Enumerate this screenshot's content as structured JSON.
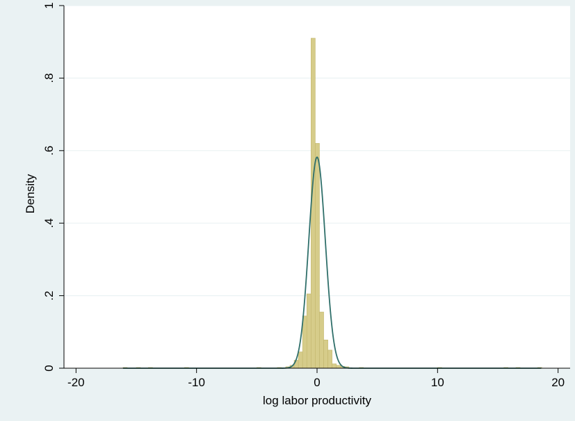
{
  "colors": {
    "background": "#eaf2f3",
    "plot_background": "#ffffff",
    "grid": "#eaf2f3",
    "bar_fill": "#d6cc8a",
    "bar_edge": "#c2b76d",
    "curve": "#2f6f6a",
    "axis": "#000000"
  },
  "chart_data": {
    "type": "bar",
    "title": "",
    "xlabel": "log labor productivity",
    "ylabel": "Density",
    "xlim": [
      -21,
      21
    ],
    "ylim": [
      0,
      1
    ],
    "grid": true,
    "legend": "none",
    "x_ticks": [
      {
        "value": -20,
        "label": "-20"
      },
      {
        "value": -10,
        "label": "-10"
      },
      {
        "value": 0,
        "label": "0"
      },
      {
        "value": 10,
        "label": "10"
      },
      {
        "value": 20,
        "label": "20"
      }
    ],
    "y_ticks": [
      {
        "value": 0,
        "label": "0"
      },
      {
        "value": 0.2,
        "label": ".2"
      },
      {
        "value": 0.4,
        "label": ".4"
      },
      {
        "value": 0.6,
        "label": ".6"
      },
      {
        "value": 0.8,
        "label": ".8"
      },
      {
        "value": 1,
        "label": "1"
      }
    ],
    "histogram": {
      "name": "Density",
      "bin_width": 0.35,
      "bins": [
        {
          "start": -16.1,
          "density": 0.002
        },
        {
          "start": -15.0,
          "density": 0.002
        },
        {
          "start": -14.0,
          "density": 0.002
        },
        {
          "start": -11.0,
          "density": 0.002
        },
        {
          "start": -5.0,
          "density": 0.002
        },
        {
          "start": -3.3,
          "density": 0.002
        },
        {
          "start": -2.6,
          "density": 0.004
        },
        {
          "start": -2.25,
          "density": 0.008
        },
        {
          "start": -1.9,
          "density": 0.022
        },
        {
          "start": -1.55,
          "density": 0.045
        },
        {
          "start": -1.2,
          "density": 0.144
        },
        {
          "start": -0.85,
          "density": 0.205
        },
        {
          "start": -0.5,
          "density": 0.91
        },
        {
          "start": -0.15,
          "density": 0.62
        },
        {
          "start": 0.2,
          "density": 0.155
        },
        {
          "start": 0.55,
          "density": 0.078
        },
        {
          "start": 0.9,
          "density": 0.05
        },
        {
          "start": 1.25,
          "density": 0.012
        },
        {
          "start": 1.6,
          "density": 0.008
        },
        {
          "start": 1.95,
          "density": 0.005
        },
        {
          "start": 2.3,
          "density": 0.004
        },
        {
          "start": 3.5,
          "density": 0.002
        },
        {
          "start": 10.0,
          "density": 0.002
        },
        {
          "start": 15.5,
          "density": 0.002
        },
        {
          "start": 16.5,
          "density": 0.002
        },
        {
          "start": 18.3,
          "density": 0.002
        }
      ]
    },
    "normal_density": {
      "name": "normal density",
      "mean": 0.0,
      "sd": 0.685,
      "peak": 0.582
    }
  }
}
